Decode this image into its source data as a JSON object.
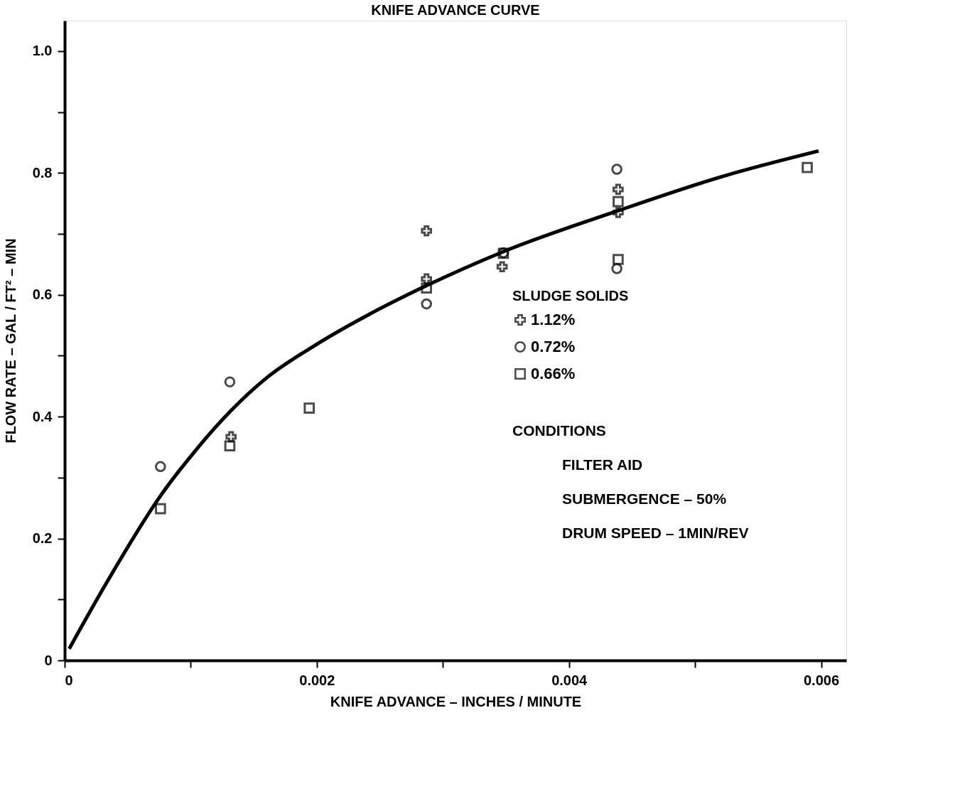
{
  "chart_data": {
    "type": "scatter",
    "title": "KNIFE ADVANCE CURVE",
    "xlabel": "KNIFE ADVANCE – INCHES / MINUTE",
    "ylabel": "FLOW RATE – GAL / FT² – MIN",
    "legend_title": "SLUDGE SOLIDS",
    "xlim": [
      0,
      0.0062
    ],
    "ylim": [
      0,
      1.05
    ],
    "xticks": [
      0,
      {
        "value": 0.001,
        "label": null
      },
      0.002,
      {
        "value": 0.003,
        "label": null
      },
      0.004,
      {
        "value": 0.005,
        "label": null
      },
      0.006
    ],
    "yticks": [
      0,
      {
        "value": 0.1,
        "label": null
      },
      0.2,
      {
        "value": 0.3,
        "label": null
      },
      0.4,
      {
        "value": 0.5,
        "label": null
      },
      0.6,
      {
        "value": 0.7,
        "label": null
      },
      0.8,
      {
        "value": 0.9,
        "label": null
      },
      {
        "value": 1,
        "label": "1.0"
      }
    ],
    "grid": false,
    "legend": "right",
    "series": [
      {
        "name": "1.12%",
        "color": "#000000",
        "marker": "cross",
        "x": [
          0.00132,
          0.00287,
          0.00287,
          0.00347,
          0.00439,
          0.00439
        ],
        "values": [
          0.367,
          0.705,
          0.626,
          0.646,
          0.773,
          0.735
        ]
      },
      {
        "name": "0.72%",
        "color": "#000000",
        "marker": "circle",
        "x": [
          0.00076,
          0.00131,
          0.00287,
          0.00348,
          0.00438,
          0.00438
        ],
        "values": [
          0.318,
          0.457,
          0.585,
          0.669,
          0.806,
          0.643
        ]
      },
      {
        "name": "0.66%",
        "color": "#000000",
        "marker": "square",
        "x": [
          0.00076,
          0.00131,
          0.00194,
          0.00287,
          0.00348,
          0.00439,
          0.00439,
          0.00589
        ],
        "values": [
          0.249,
          0.352,
          0.414,
          0.611,
          0.668,
          0.753,
          0.658,
          0.809
        ]
      },
      {
        "type": "line",
        "color": "#000000",
        "marker": "none",
        "x": [
          3.6e-05,
          0.00032,
          0.00076,
          0.00104,
          0.00132,
          0.00161,
          0.00197,
          0.00239,
          0.00287,
          0.00347,
          0.00439,
          0.00523,
          0.00598
        ],
        "values": [
          0.019,
          0.123,
          0.27,
          0.345,
          0.41,
          0.465,
          0.515,
          0.565,
          0.615,
          0.67,
          0.738,
          0.795,
          0.836
        ]
      }
    ],
    "annotations": [
      "CONDITIONS",
      "FILTER AID",
      "SUBMERGENCE – 50%",
      "DRUM SPEED – 1MIN/REV"
    ]
  }
}
